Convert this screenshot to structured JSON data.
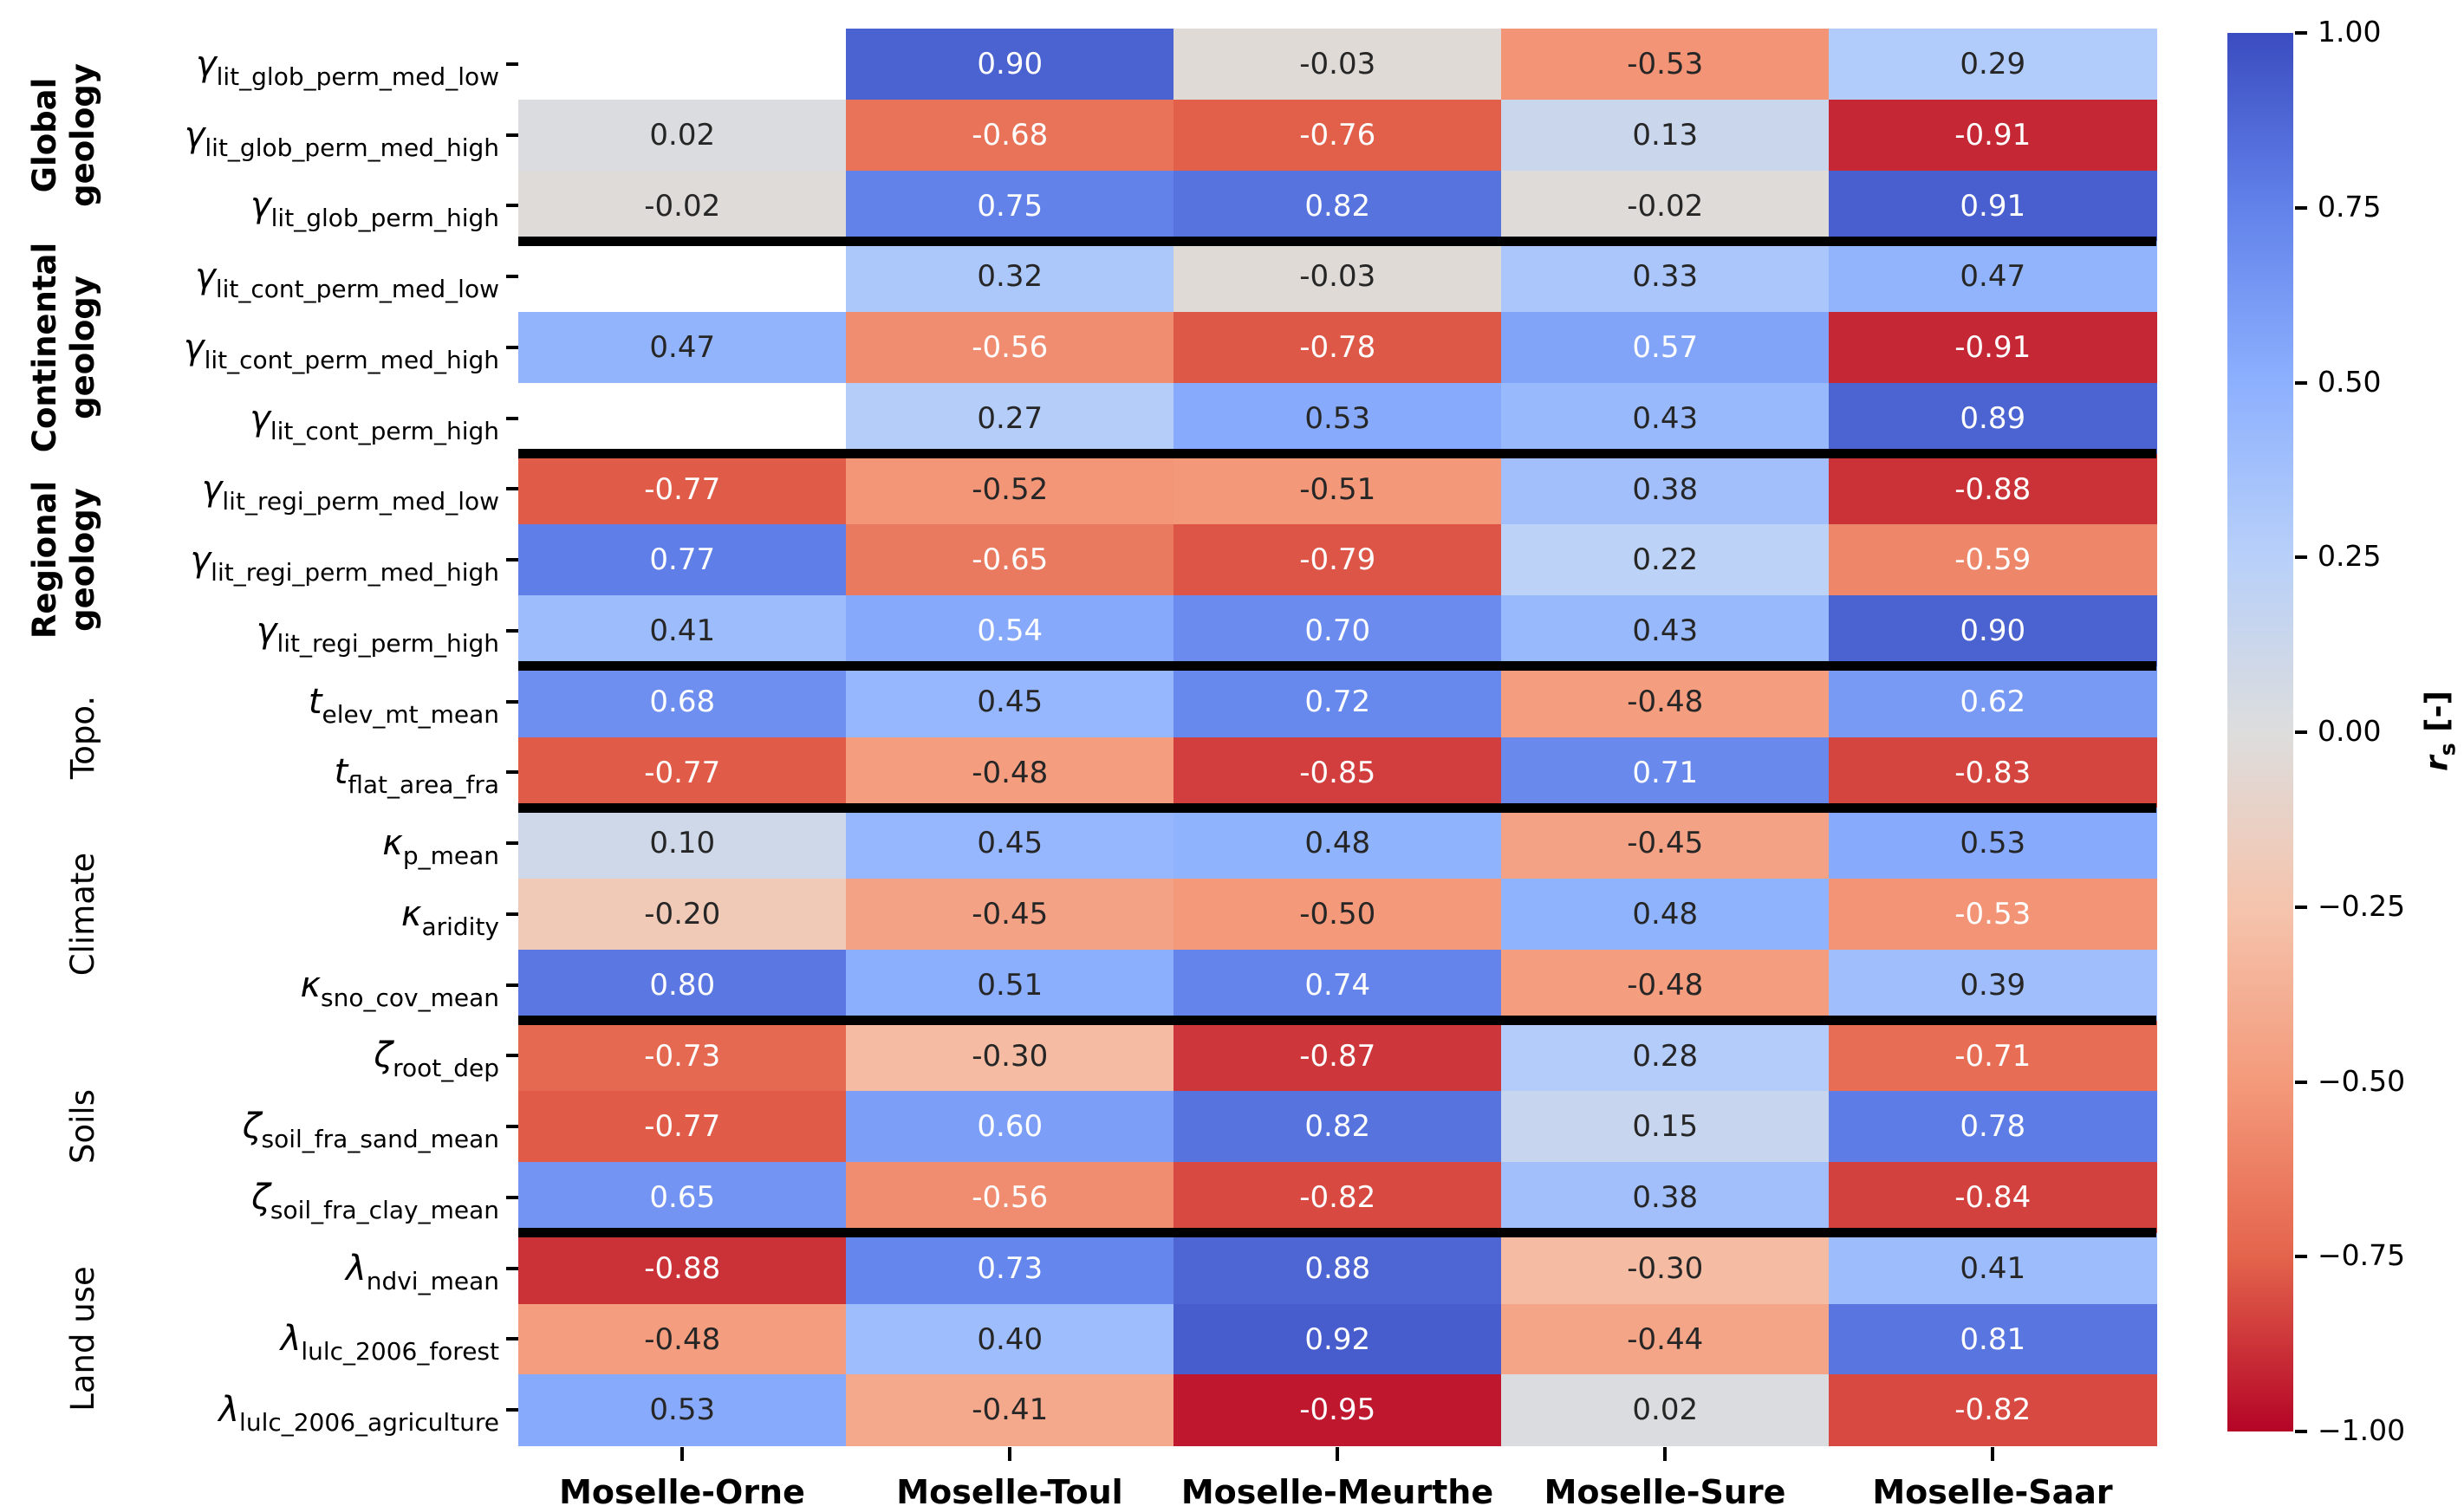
{
  "figure": {
    "background": "#ffffff"
  },
  "chart_data": {
    "type": "heatmap",
    "title": "",
    "xlabel": "",
    "ylabel": "",
    "columns": [
      "Moselle-Orne",
      "Moselle-Toul",
      "Moselle-Meurthe",
      "Moselle-Sure",
      "Moselle-Saar"
    ],
    "rows": [
      {
        "prefix": "γ",
        "subscript": "lit_glob_perm_med_low"
      },
      {
        "prefix": "γ",
        "subscript": "lit_glob_perm_med_high"
      },
      {
        "prefix": "γ",
        "subscript": "lit_glob_perm_high"
      },
      {
        "prefix": "γ",
        "subscript": "lit_cont_perm_med_low"
      },
      {
        "prefix": "γ",
        "subscript": "lit_cont_perm_med_high"
      },
      {
        "prefix": "γ",
        "subscript": "lit_cont_perm_high"
      },
      {
        "prefix": "γ",
        "subscript": "lit_regi_perm_med_low"
      },
      {
        "prefix": "γ",
        "subscript": "lit_regi_perm_med_high"
      },
      {
        "prefix": "γ",
        "subscript": "lit_regi_perm_high"
      },
      {
        "prefix": "t",
        "subscript": "elev_mt_mean"
      },
      {
        "prefix": "t",
        "subscript": "flat_area_fra"
      },
      {
        "prefix": "κ",
        "subscript": "p_mean"
      },
      {
        "prefix": "κ",
        "subscript": "aridity"
      },
      {
        "prefix": "κ",
        "subscript": "sno_cov_mean"
      },
      {
        "prefix": "ζ",
        "subscript": "root_dep"
      },
      {
        "prefix": "ζ",
        "subscript": "soil_fra_sand_mean"
      },
      {
        "prefix": "ζ",
        "subscript": "soil_fra_clay_mean"
      },
      {
        "prefix": "λ",
        "subscript": "ndvi_mean"
      },
      {
        "prefix": "λ",
        "subscript": "lulc_2006_forest"
      },
      {
        "prefix": "λ",
        "subscript": "lulc_2006_agriculture"
      }
    ],
    "groups": [
      {
        "label": "Global geology",
        "lines": [
          "Global",
          "geology"
        ],
        "bold": true,
        "row_start": 0,
        "row_end": 2
      },
      {
        "label": "Continental geology",
        "lines": [
          "Continental",
          "geology"
        ],
        "bold": true,
        "row_start": 3,
        "row_end": 5
      },
      {
        "label": "Regional geology",
        "lines": [
          "Regional",
          "geology"
        ],
        "bold": true,
        "row_start": 6,
        "row_end": 8
      },
      {
        "label": "Topo.",
        "lines": [
          "Topo."
        ],
        "bold": false,
        "row_start": 9,
        "row_end": 10
      },
      {
        "label": "Climate",
        "lines": [
          "Climate"
        ],
        "bold": false,
        "row_start": 11,
        "row_end": 13
      },
      {
        "label": "Soils",
        "lines": [
          "Soils"
        ],
        "bold": false,
        "row_start": 14,
        "row_end": 16
      },
      {
        "label": "Land use",
        "lines": [
          "Land use"
        ],
        "bold": false,
        "row_start": 17,
        "row_end": 19
      }
    ],
    "values": [
      [
        null,
        0.9,
        -0.03,
        -0.53,
        0.29
      ],
      [
        0.02,
        -0.68,
        -0.76,
        0.13,
        -0.91
      ],
      [
        -0.02,
        0.75,
        0.82,
        -0.02,
        0.91
      ],
      [
        null,
        0.32,
        -0.03,
        0.33,
        0.47
      ],
      [
        0.47,
        -0.56,
        -0.78,
        0.57,
        -0.91
      ],
      [
        null,
        0.27,
        0.53,
        0.43,
        0.89
      ],
      [
        -0.77,
        -0.52,
        -0.51,
        0.38,
        -0.88
      ],
      [
        0.77,
        -0.65,
        -0.79,
        0.22,
        -0.59
      ],
      [
        0.41,
        0.54,
        0.7,
        0.43,
        0.9
      ],
      [
        0.68,
        0.45,
        0.72,
        -0.48,
        0.62
      ],
      [
        -0.77,
        -0.48,
        -0.85,
        0.71,
        -0.83
      ],
      [
        0.1,
        0.45,
        0.48,
        -0.45,
        0.53
      ],
      [
        -0.2,
        -0.45,
        -0.5,
        0.48,
        -0.53
      ],
      [
        0.8,
        0.51,
        0.74,
        -0.48,
        0.39
      ],
      [
        -0.73,
        -0.3,
        -0.87,
        0.28,
        -0.71
      ],
      [
        -0.77,
        0.6,
        0.82,
        0.15,
        0.78
      ],
      [
        0.65,
        -0.56,
        -0.82,
        0.38,
        -0.84
      ],
      [
        -0.88,
        0.73,
        0.88,
        -0.3,
        0.41
      ],
      [
        -0.48,
        0.4,
        0.92,
        -0.44,
        0.81
      ],
      [
        0.53,
        -0.41,
        -0.95,
        0.02,
        -0.82
      ]
    ],
    "annot_fmt": ".2f",
    "vmin": -1.0,
    "vmax": 1.0,
    "grid": false,
    "colormap": {
      "name": "coolwarm_r",
      "anchors": [
        {
          "v": 1.0,
          "color": "#3B4CC0"
        },
        {
          "v": 0.75,
          "color": "#6282EA"
        },
        {
          "v": 0.5,
          "color": "#8DB0FE"
        },
        {
          "v": 0.25,
          "color": "#B8D0F9"
        },
        {
          "v": 0.0,
          "color": "#DDDDDD"
        },
        {
          "v": -0.25,
          "color": "#F5C4AD"
        },
        {
          "v": -0.5,
          "color": "#F49A7B"
        },
        {
          "v": -0.75,
          "color": "#E4644C"
        },
        {
          "v": -1.0,
          "color": "#B40426"
        }
      ]
    },
    "annotation_colors": {
      "dark": "#262626",
      "light": "#ffffff",
      "luminance_threshold": 0.408,
      "overrides": [
        {
          "row": 12,
          "col": 4,
          "use": "light"
        }
      ]
    },
    "missing_color": "#ffffff",
    "separator_color": "#000000",
    "colorbar": {
      "position": "right",
      "tick_values": [
        1.0,
        0.75,
        0.5,
        0.25,
        0.0,
        -0.25,
        -0.5,
        -0.75,
        -1.0
      ],
      "tick_labels": [
        "1.00",
        "0.75",
        "0.50",
        "0.25",
        "0.00",
        "−0.25",
        "−0.50",
        "−0.75",
        "−1.00"
      ],
      "label": {
        "symbol": "r",
        "subscript": "s",
        "unit": " [-]"
      }
    }
  }
}
